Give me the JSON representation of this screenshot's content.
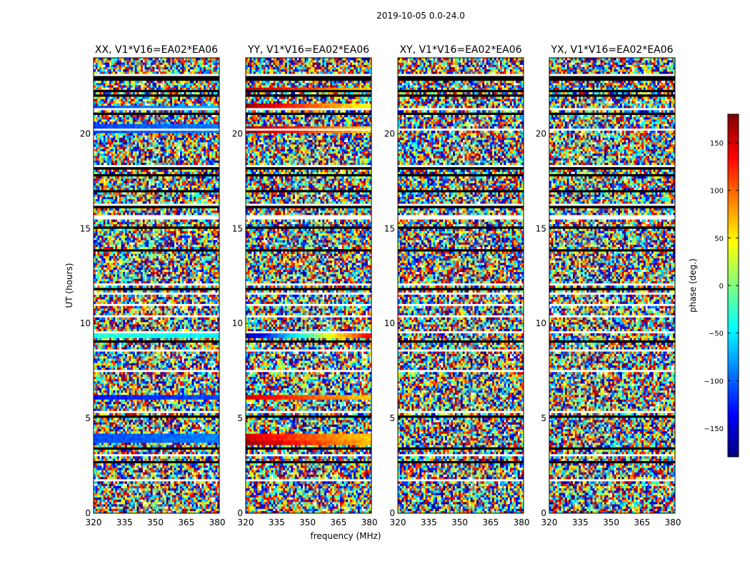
{
  "figure": {
    "title": "2019-10-05 0.0-24.0"
  },
  "chart_data": [
    {
      "type": "heatmap",
      "title": "XX, V1*V16=EA02*EA06",
      "ylabel": "UT (hours)",
      "xlabel": "",
      "xlim": [
        320,
        381
      ],
      "ylim": [
        0,
        24
      ],
      "x_ticks": [
        "320",
        "335",
        "350",
        "365",
        "380"
      ],
      "x_tick_values": [
        320,
        335,
        350,
        365,
        380
      ],
      "y_ticks": [
        "0",
        "5",
        "10",
        "15",
        "20"
      ],
      "y_tick_values": [
        0,
        5,
        10,
        15,
        20
      ],
      "coherent_bands": [
        {
          "ut_start": 3.7,
          "ut_end": 4.2,
          "phase_start": -110,
          "phase_end": -90
        },
        {
          "ut_start": 6.0,
          "ut_end": 6.2,
          "phase_start": -130,
          "phase_end": -110
        },
        {
          "ut_start": 9.2,
          "ut_end": 9.5,
          "phase_start": -30,
          "phase_end": -50
        },
        {
          "ut_start": 20.1,
          "ut_end": 20.5,
          "phase_start": -110,
          "phase_end": -90
        },
        {
          "ut_start": 21.3,
          "ut_end": 21.5,
          "phase_start": -110,
          "phase_end": -70
        }
      ]
    },
    {
      "type": "heatmap",
      "title": "YY, V1*V16=EA02*EA06",
      "xlabel": "frequency (MHz)",
      "xlim": [
        320,
        381
      ],
      "ylim": [
        0,
        24
      ],
      "x_ticks": [
        "320",
        "335",
        "350",
        "365",
        "380"
      ],
      "x_tick_values": [
        320,
        335,
        350,
        365,
        380
      ],
      "y_ticks": [
        "0",
        "5",
        "10",
        "15",
        "20"
      ],
      "y_tick_values": [
        0,
        5,
        10,
        15,
        20
      ],
      "coherent_bands": [
        {
          "ut_start": 3.9,
          "ut_end": 4.2,
          "phase_start": 150,
          "phase_end": 60
        },
        {
          "ut_start": 3.6,
          "ut_end": 3.8,
          "phase_start": 170,
          "phase_end": 70
        },
        {
          "ut_start": 6.0,
          "ut_end": 6.2,
          "phase_start": 150,
          "phase_end": 60
        },
        {
          "ut_start": 9.3,
          "ut_end": 9.6,
          "phase_start": -170,
          "phase_end": 140
        },
        {
          "ut_start": 20.0,
          "ut_end": 20.4,
          "phase_start": 170,
          "phase_end": 60
        },
        {
          "ut_start": 21.3,
          "ut_end": 21.6,
          "phase_start": 170,
          "phase_end": 40
        },
        {
          "ut_start": 22.2,
          "ut_end": 22.4,
          "phase_start": 160,
          "phase_end": 60
        }
      ]
    },
    {
      "type": "heatmap",
      "title": "XY, V1*V16=EA02*EA06",
      "xlabel": "",
      "xlim": [
        320,
        381
      ],
      "ylim": [
        0,
        24
      ],
      "x_ticks": [
        "320",
        "335",
        "350",
        "365",
        "380"
      ],
      "x_tick_values": [
        320,
        335,
        350,
        365,
        380
      ],
      "y_ticks": [
        "0",
        "5",
        "10",
        "15",
        "20"
      ],
      "y_tick_values": [
        0,
        5,
        10,
        15,
        20
      ],
      "coherent_bands": []
    },
    {
      "type": "heatmap",
      "title": "YX, V1*V16=EA02*EA06",
      "xlabel": "",
      "xlim": [
        320,
        381
      ],
      "ylim": [
        0,
        24
      ],
      "x_ticks": [
        "320",
        "335",
        "350",
        "365",
        "380"
      ],
      "x_tick_values": [
        320,
        335,
        350,
        365,
        380
      ],
      "y_ticks": [
        "0",
        "5",
        "10",
        "15",
        "20"
      ],
      "y_tick_values": [
        0,
        5,
        10,
        15,
        20
      ],
      "coherent_bands": []
    }
  ],
  "colorbar": {
    "label": "phase (deg.)",
    "range": [
      -180,
      180
    ],
    "tick_values": [
      150,
      100,
      50,
      0,
      -50,
      -100,
      -150
    ],
    "tick_labels": [
      "150",
      "100",
      "50",
      "0",
      "−50",
      "−100",
      "−150"
    ],
    "colormap": "jet",
    "colors": [
      "#00007f",
      "#0000ff",
      "#007fff",
      "#00ffff",
      "#7fff7f",
      "#ffff00",
      "#ff7f00",
      "#ff0000",
      "#7f0000"
    ]
  },
  "flag_color": "#000000",
  "blank_color": "#ffffff"
}
